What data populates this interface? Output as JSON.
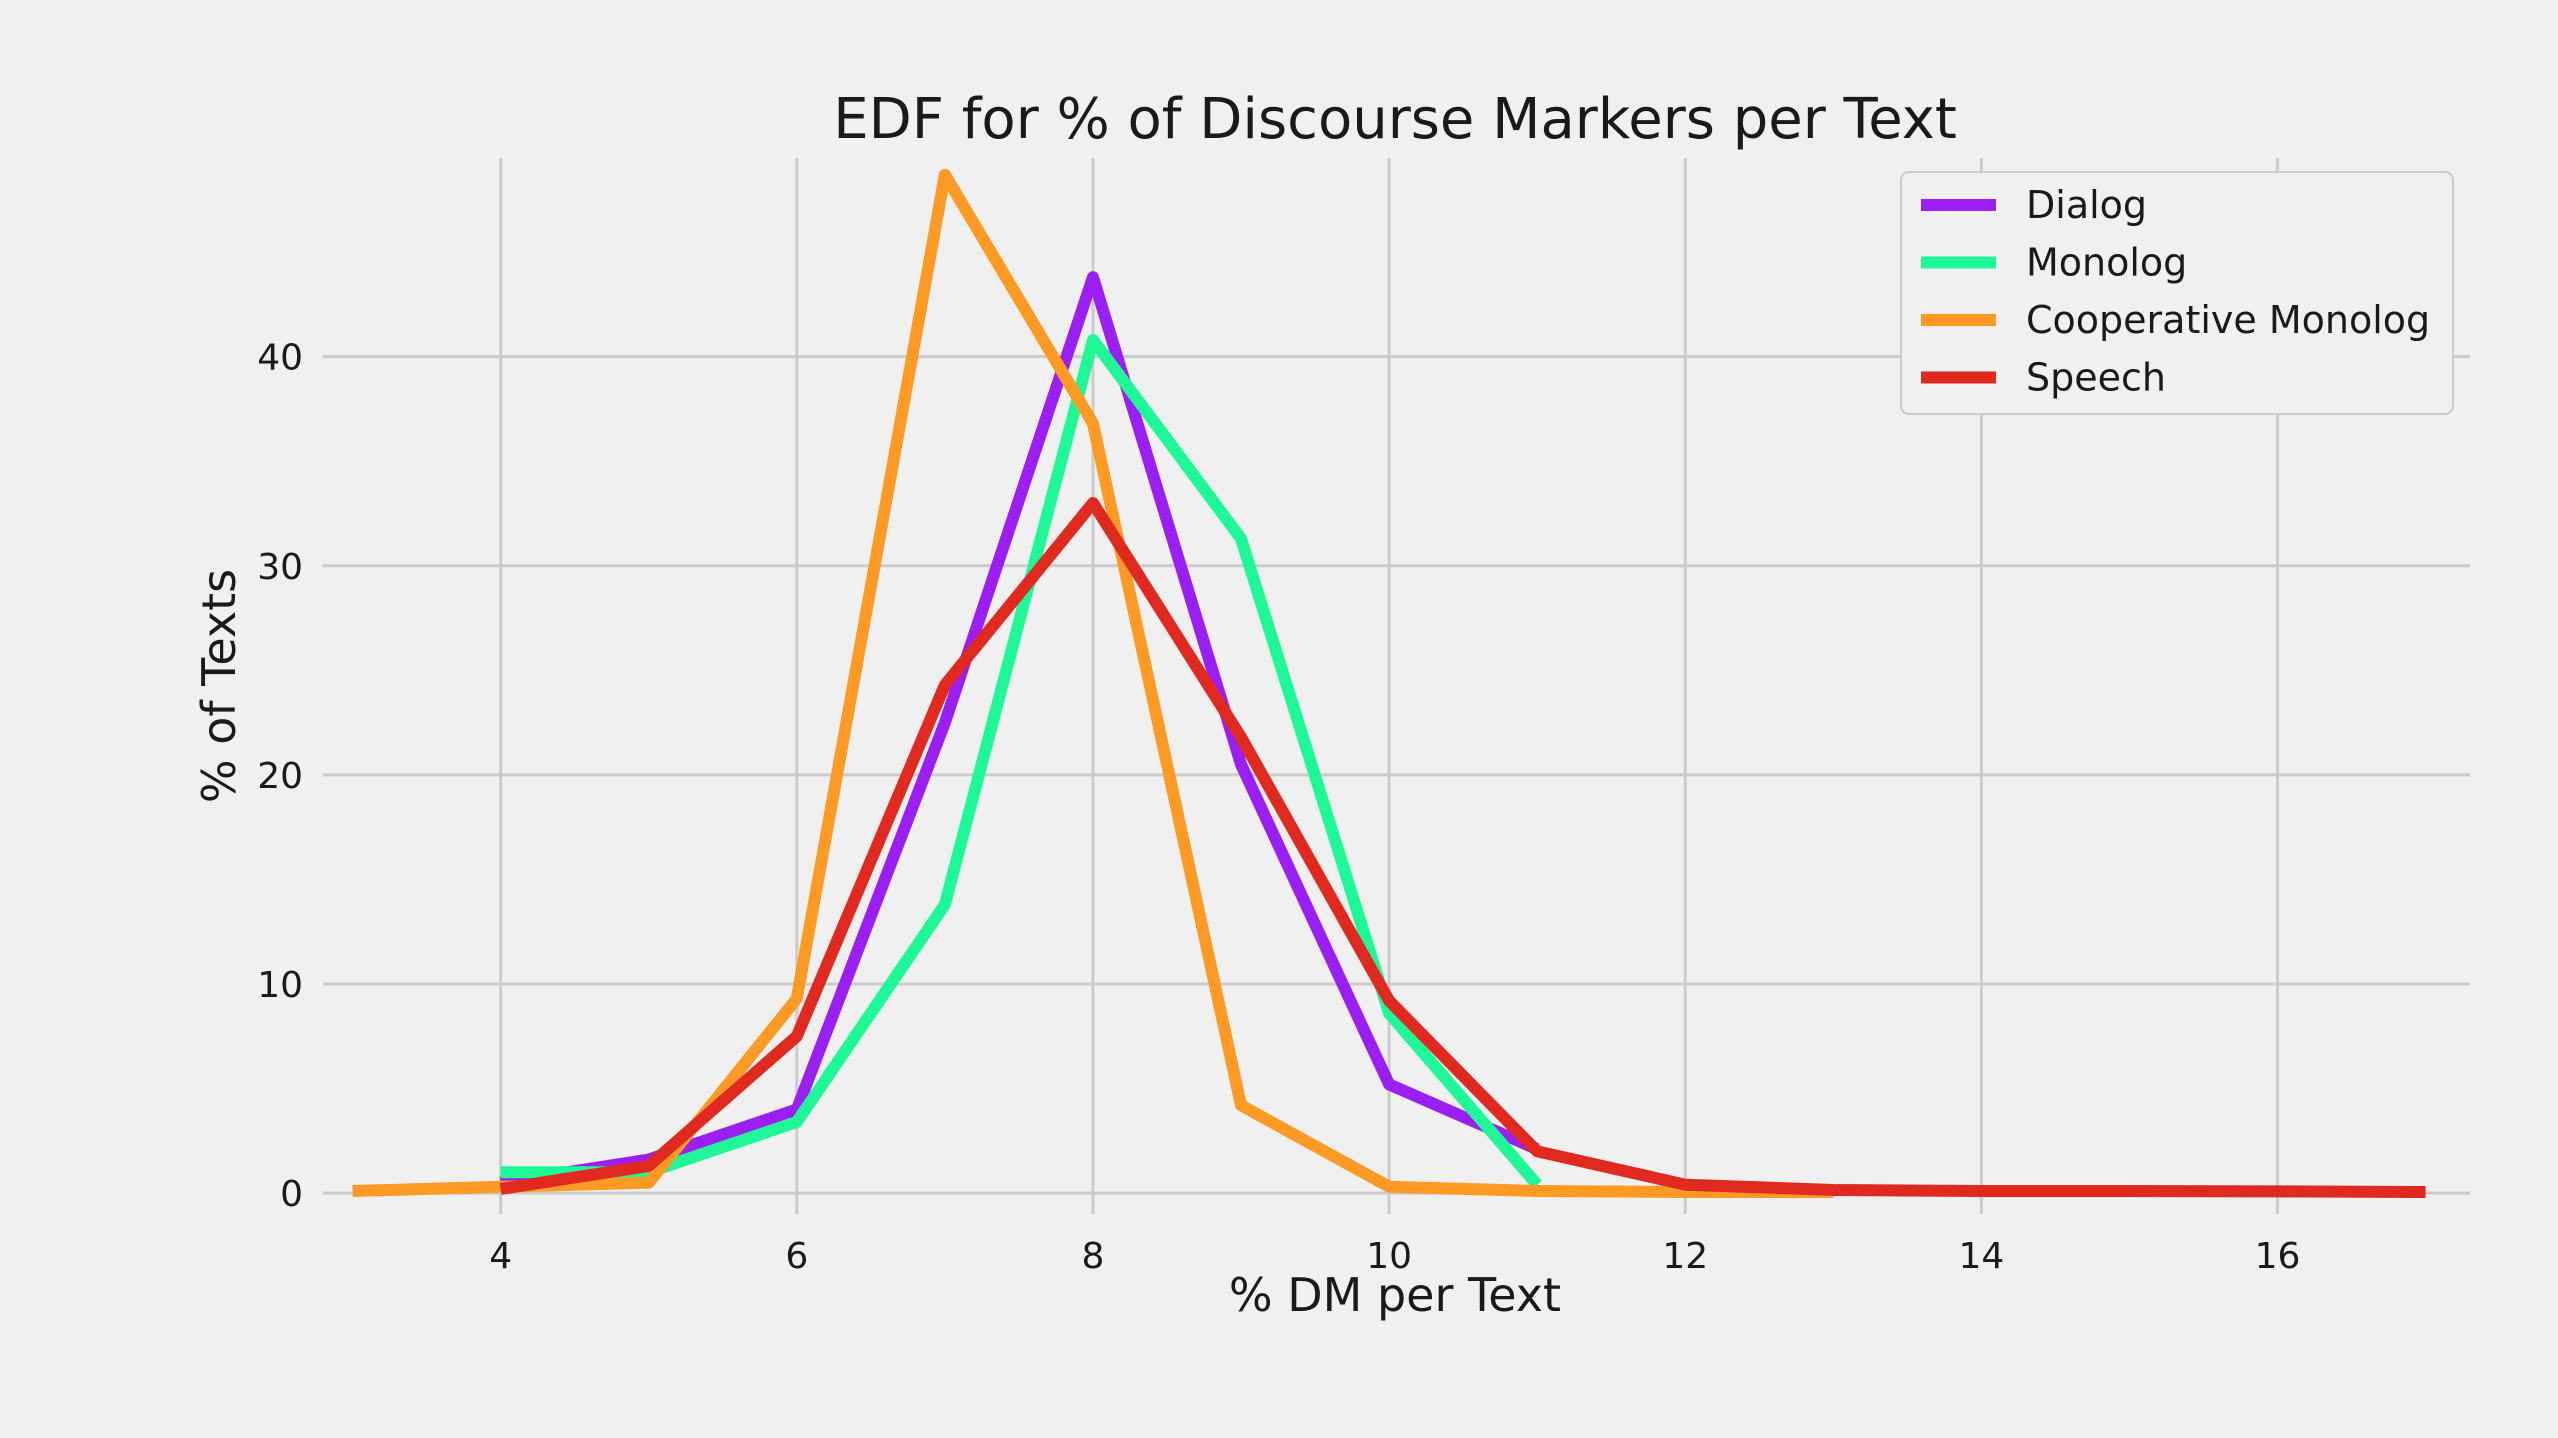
{
  "chart_data": {
    "type": "line",
    "title": "EDF for % of Discourse Markers per Text",
    "xlabel": "% DM per Text",
    "ylabel": "% of Texts",
    "xlim": [
      2.8,
      17.3
    ],
    "ylim": [
      -1,
      49.5
    ],
    "xticks": [
      4,
      6,
      8,
      10,
      12,
      14,
      16
    ],
    "yticks": [
      0,
      10,
      20,
      30,
      40
    ],
    "xtick_labels": [
      "4",
      "6",
      "8",
      "10",
      "12",
      "14",
      "16"
    ],
    "ytick_labels": [
      "0",
      "10",
      "20",
      "30",
      "40"
    ],
    "grid": true,
    "legend_position": "top-right",
    "series": [
      {
        "name": "Dialog",
        "color": "#9b1ff2",
        "x": [
          4,
          5,
          6,
          7,
          8,
          9,
          10,
          11
        ],
        "y": [
          0.5,
          1.6,
          4.0,
          22.5,
          43.8,
          20.5,
          5.2,
          2.1
        ]
      },
      {
        "name": "Monolog",
        "color": "#1ff896",
        "x": [
          4,
          5,
          6,
          7,
          8,
          9,
          10,
          11
        ],
        "y": [
          1.0,
          1.0,
          3.4,
          13.8,
          40.8,
          31.3,
          8.6,
          0.4
        ]
      },
      {
        "name": "Cooperative Monolog",
        "color": "#ff9a24",
        "x": [
          3,
          4,
          5,
          6,
          7,
          8,
          9,
          10,
          11,
          12,
          13
        ],
        "y": [
          0.1,
          0.3,
          0.5,
          9.3,
          48.7,
          36.8,
          4.2,
          0.3,
          0.1,
          0.05,
          0.05
        ]
      },
      {
        "name": "Speech",
        "color": "#e0291f",
        "x": [
          4,
          5,
          6,
          7,
          8,
          9,
          10,
          11,
          12,
          13,
          14,
          15,
          16,
          17
        ],
        "y": [
          0.2,
          1.3,
          7.5,
          24.3,
          33.0,
          21.8,
          9.2,
          2.0,
          0.4,
          0.15,
          0.1,
          0.1,
          0.08,
          0.05
        ]
      }
    ]
  }
}
